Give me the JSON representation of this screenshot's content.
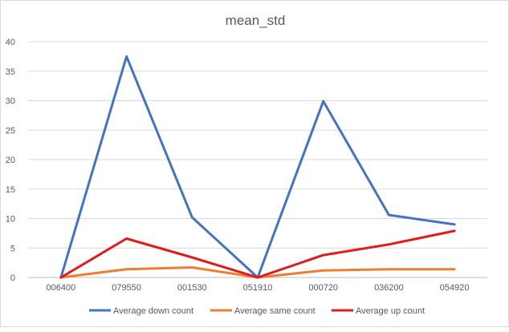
{
  "chart_data": {
    "type": "line",
    "title": "mean_std",
    "xlabel": "",
    "ylabel": "",
    "categories": [
      "006400",
      "079550",
      "001530",
      "051910",
      "000720",
      "036200",
      "054920"
    ],
    "ylim": [
      0,
      40
    ],
    "yticks": [
      0,
      5,
      10,
      15,
      20,
      25,
      30,
      35,
      40
    ],
    "grid": true,
    "legend_position": "bottom",
    "series": [
      {
        "name": "Average down count",
        "color": "#4472c4",
        "values": [
          0,
          37.5,
          10.2,
          0,
          29.9,
          10.6,
          9.0
        ]
      },
      {
        "name": "Average same count",
        "color": "#ed7d31",
        "values": [
          0,
          1.4,
          1.7,
          0,
          1.2,
          1.4,
          1.4
        ]
      },
      {
        "name": "Average up count",
        "color": "#e31a1c",
        "values": [
          0,
          6.6,
          3.4,
          0,
          3.8,
          5.6,
          7.9
        ]
      }
    ]
  }
}
